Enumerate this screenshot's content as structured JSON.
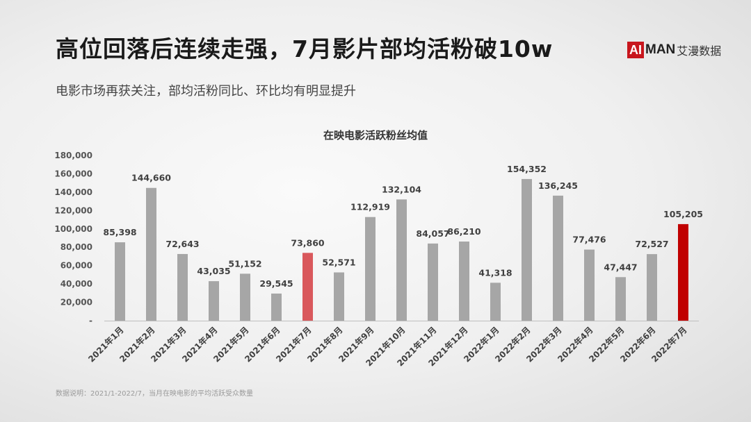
{
  "header": {
    "title": "高位回落后连续走强，7月影片部均活粉破10w",
    "subtitle": "电影市场再获关注，部均活粉同比、环比均有明显提升"
  },
  "logo": {
    "ai": "AI",
    "man": "MAN",
    "cn": "艾漫数据"
  },
  "footnote": "数据说明：2021/1-2022/7，当月在映电影的平均活跃受众数量",
  "chart_data": {
    "type": "bar",
    "title": "在映电影活跃粉丝均值",
    "categories": [
      "2021年1月",
      "2021年2月",
      "2021年3月",
      "2021年4月",
      "2021年5月",
      "2021年6月",
      "2021年7月",
      "2021年8月",
      "2021年9月",
      "2021年10月",
      "2021年11月",
      "2021年12月",
      "2022年1月",
      "2022年2月",
      "2022年3月",
      "2022年4月",
      "2022年5月",
      "2022年6月",
      "2022年7月"
    ],
    "values": [
      85398,
      144660,
      72643,
      43035,
      51152,
      29545,
      73860,
      52571,
      112919,
      132104,
      84057,
      86210,
      41318,
      154352,
      136245,
      77476,
      47447,
      72527,
      105205
    ],
    "data_labels": [
      "85,398",
      "144,660",
      "72,643",
      "43,035",
      "51,152",
      "29,545",
      "73,860",
      "52,571",
      "112,919",
      "132,104",
      "84,057",
      "86,210",
      "41,318",
      "154,352",
      "136,245",
      "77,476",
      "47,447",
      "72,527",
      "105,205"
    ],
    "ylim": [
      0,
      180000
    ],
    "yticks": [
      "-",
      "20,000",
      "40,000",
      "60,000",
      "80,000",
      "100,000",
      "120,000",
      "140,000",
      "160,000",
      "180,000"
    ],
    "bar_colors": {
      "default": "#a6a6a6",
      "2021年7月": "#d9585c",
      "2022年7月": "#c00000"
    },
    "grid": false,
    "legend": "none"
  }
}
